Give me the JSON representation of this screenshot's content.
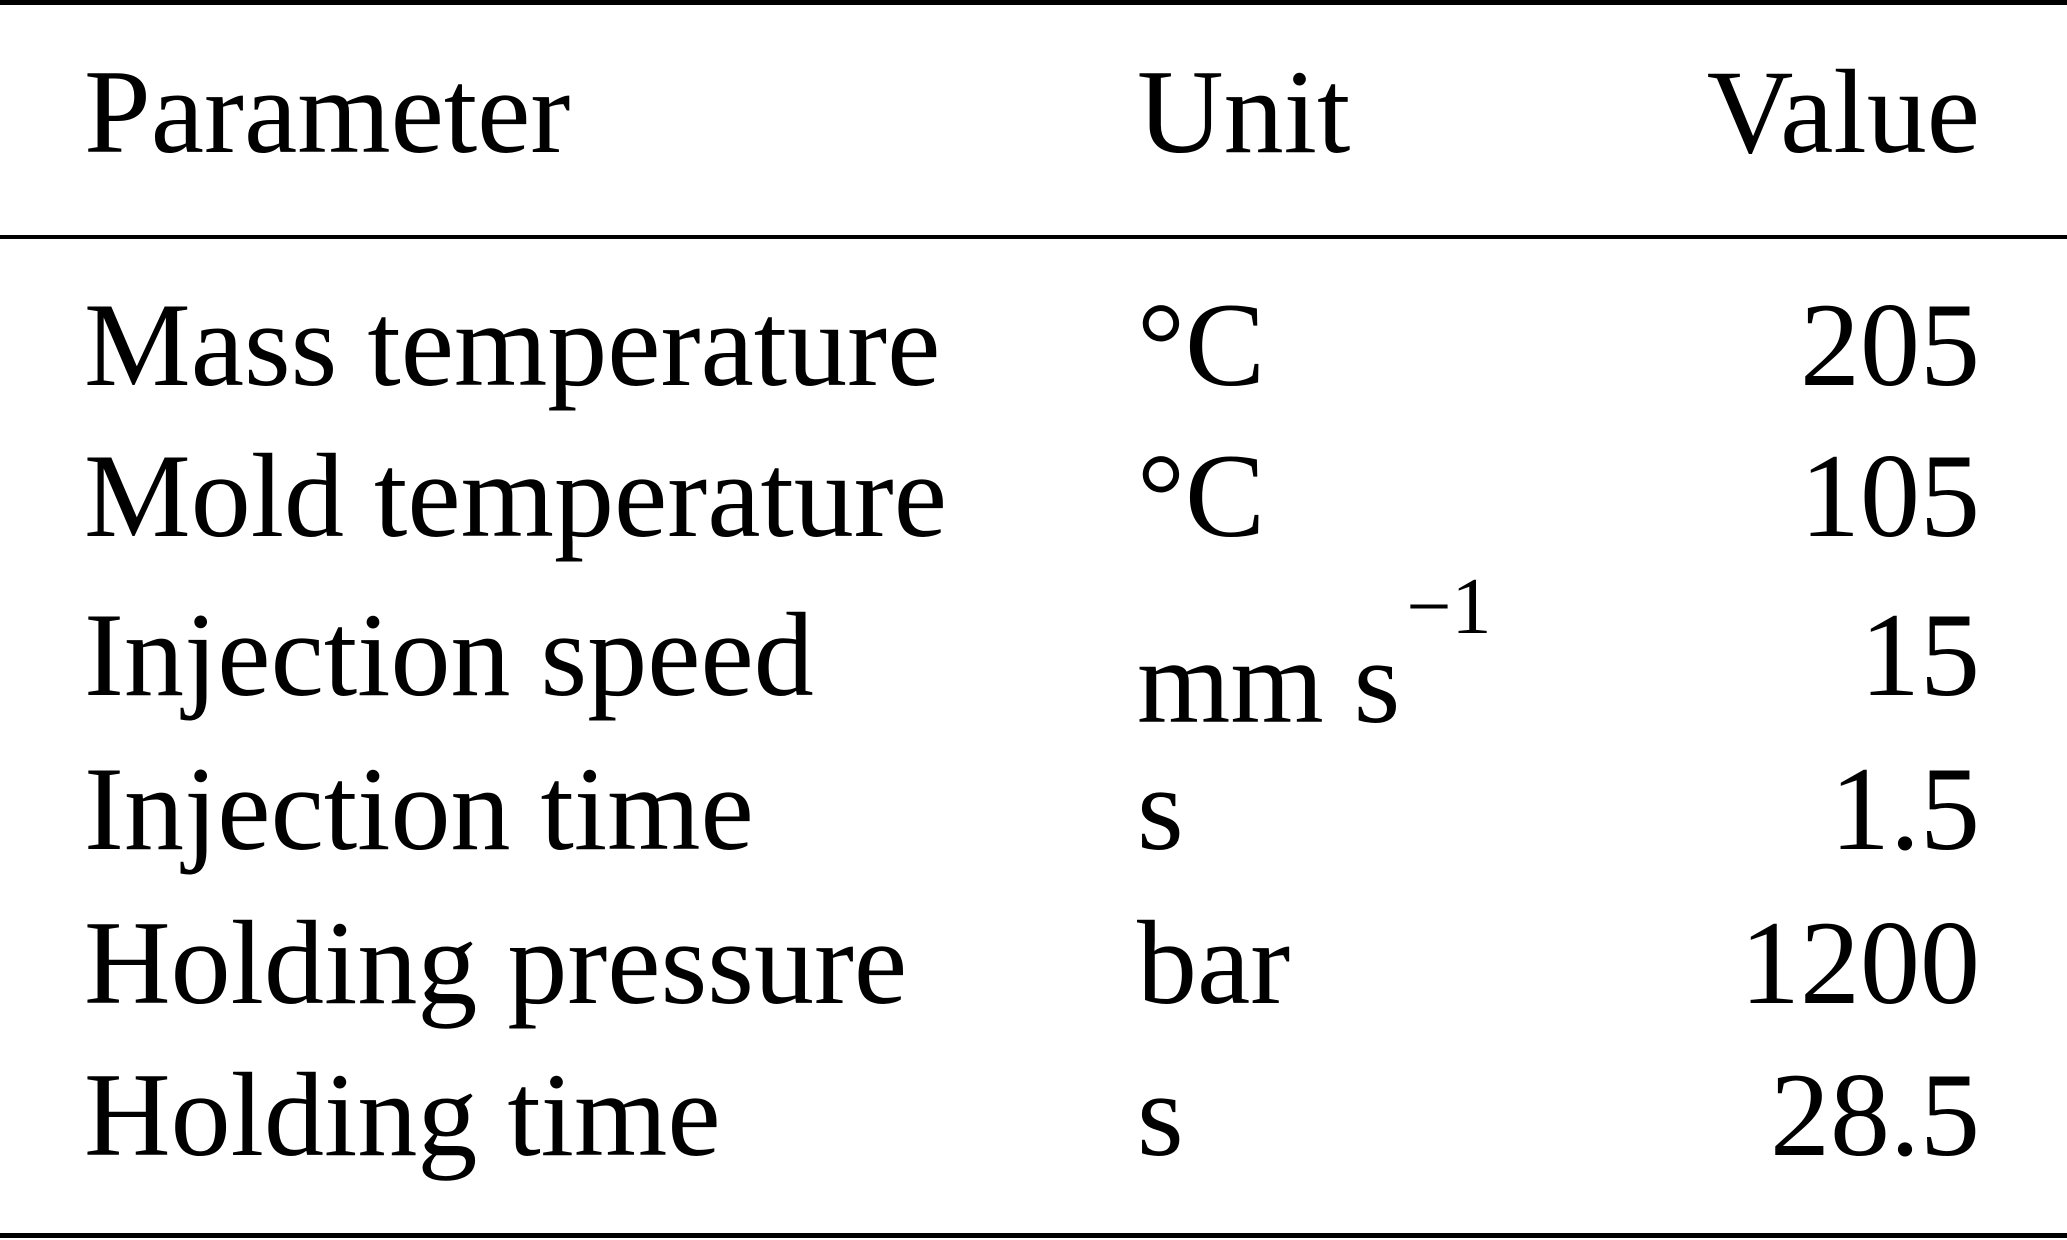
{
  "table": {
    "headers": {
      "parameter": "Parameter",
      "unit": "Unit",
      "value": "Value"
    },
    "rows": [
      {
        "parameter": "Mass temperature",
        "unit": "°C",
        "unit_sup": "",
        "value": "205"
      },
      {
        "parameter": "Mold temperature",
        "unit": "°C",
        "unit_sup": "",
        "value": "105"
      },
      {
        "parameter": "Injection speed",
        "unit": "mm s",
        "unit_sup": "−1",
        "value": "15"
      },
      {
        "parameter": "Injection time",
        "unit": "s",
        "unit_sup": "",
        "value": "1.5"
      },
      {
        "parameter": "Holding pressure",
        "unit": "bar",
        "unit_sup": "",
        "value": "1200"
      },
      {
        "parameter": "Holding time",
        "unit": "s",
        "unit_sup": "",
        "value": "28.5"
      }
    ]
  }
}
